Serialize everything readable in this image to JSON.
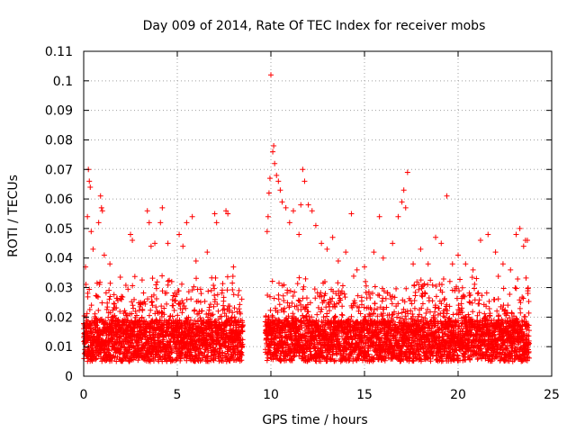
{
  "chart_data": {
    "type": "scatter",
    "title": "Day 009 of 2014, Rate Of TEC Index for receiver mobs",
    "xlabel": "GPS time / hours",
    "ylabel": "ROTI / TECUs",
    "xlim": [
      0,
      25
    ],
    "ylim": [
      0,
      0.11
    ],
    "x_ticks": [
      "0",
      "5",
      "10",
      "15",
      "20",
      "25"
    ],
    "y_ticks": [
      "0",
      "0.01",
      "0.02",
      "0.03",
      "0.04",
      "0.05",
      "0.06",
      "0.07",
      "0.08",
      "0.09",
      "0.1",
      "0.11"
    ],
    "grid": true,
    "marker": "+",
    "marker_color": "#ff0000",
    "data_gap_hours": [
      8.5,
      9.7
    ],
    "series": [
      {
        "points": [
          [
            0.1,
            0.037
          ],
          [
            0.2,
            0.054
          ],
          [
            0.25,
            0.07
          ],
          [
            0.3,
            0.066
          ],
          [
            0.35,
            0.064
          ],
          [
            0.4,
            0.049
          ],
          [
            0.5,
            0.043
          ],
          [
            0.8,
            0.052
          ],
          [
            0.9,
            0.061
          ],
          [
            0.95,
            0.057
          ],
          [
            1.0,
            0.056
          ],
          [
            1.1,
            0.041
          ],
          [
            1.4,
            0.038
          ],
          [
            2.5,
            0.048
          ],
          [
            2.6,
            0.046
          ],
          [
            3.4,
            0.056
          ],
          [
            3.5,
            0.052
          ],
          [
            3.6,
            0.044
          ],
          [
            3.8,
            0.045
          ],
          [
            4.1,
            0.052
          ],
          [
            4.2,
            0.057
          ],
          [
            4.5,
            0.045
          ],
          [
            5.1,
            0.048
          ],
          [
            5.3,
            0.044
          ],
          [
            5.5,
            0.052
          ],
          [
            5.8,
            0.054
          ],
          [
            6.0,
            0.039
          ],
          [
            6.6,
            0.042
          ],
          [
            7.0,
            0.055
          ],
          [
            7.1,
            0.052
          ],
          [
            7.6,
            0.056
          ],
          [
            7.7,
            0.055
          ],
          [
            8.0,
            0.037
          ],
          [
            8.3,
            0.029
          ],
          [
            9.8,
            0.049
          ],
          [
            9.85,
            0.054
          ],
          [
            9.9,
            0.062
          ],
          [
            9.95,
            0.067
          ],
          [
            10.0,
            0.102
          ],
          [
            10.1,
            0.076
          ],
          [
            10.15,
            0.078
          ],
          [
            10.2,
            0.072
          ],
          [
            10.3,
            0.068
          ],
          [
            10.4,
            0.066
          ],
          [
            10.5,
            0.063
          ],
          [
            10.6,
            0.059
          ],
          [
            10.8,
            0.057
          ],
          [
            11.0,
            0.052
          ],
          [
            11.2,
            0.056
          ],
          [
            11.5,
            0.048
          ],
          [
            11.6,
            0.058
          ],
          [
            11.7,
            0.07
          ],
          [
            11.8,
            0.066
          ],
          [
            12.0,
            0.058
          ],
          [
            12.2,
            0.056
          ],
          [
            12.4,
            0.051
          ],
          [
            12.7,
            0.045
          ],
          [
            13.0,
            0.043
          ],
          [
            13.3,
            0.047
          ],
          [
            13.6,
            0.039
          ],
          [
            14.0,
            0.042
          ],
          [
            14.3,
            0.055
          ],
          [
            14.6,
            0.036
          ],
          [
            15.0,
            0.037
          ],
          [
            15.5,
            0.042
          ],
          [
            15.8,
            0.054
          ],
          [
            16.0,
            0.04
          ],
          [
            16.5,
            0.045
          ],
          [
            16.8,
            0.054
          ],
          [
            17.0,
            0.059
          ],
          [
            17.1,
            0.063
          ],
          [
            17.2,
            0.057
          ],
          [
            17.3,
            0.069
          ],
          [
            17.6,
            0.038
          ],
          [
            18.0,
            0.043
          ],
          [
            18.4,
            0.038
          ],
          [
            18.8,
            0.047
          ],
          [
            19.1,
            0.045
          ],
          [
            19.4,
            0.061
          ],
          [
            19.7,
            0.038
          ],
          [
            20.0,
            0.041
          ],
          [
            20.4,
            0.038
          ],
          [
            20.8,
            0.036
          ],
          [
            21.2,
            0.046
          ],
          [
            21.6,
            0.048
          ],
          [
            22.0,
            0.042
          ],
          [
            22.4,
            0.038
          ],
          [
            22.8,
            0.036
          ],
          [
            23.1,
            0.048
          ],
          [
            23.3,
            0.05
          ],
          [
            23.5,
            0.044
          ],
          [
            23.6,
            0.046
          ],
          [
            23.7,
            0.046
          ]
        ]
      }
    ]
  }
}
